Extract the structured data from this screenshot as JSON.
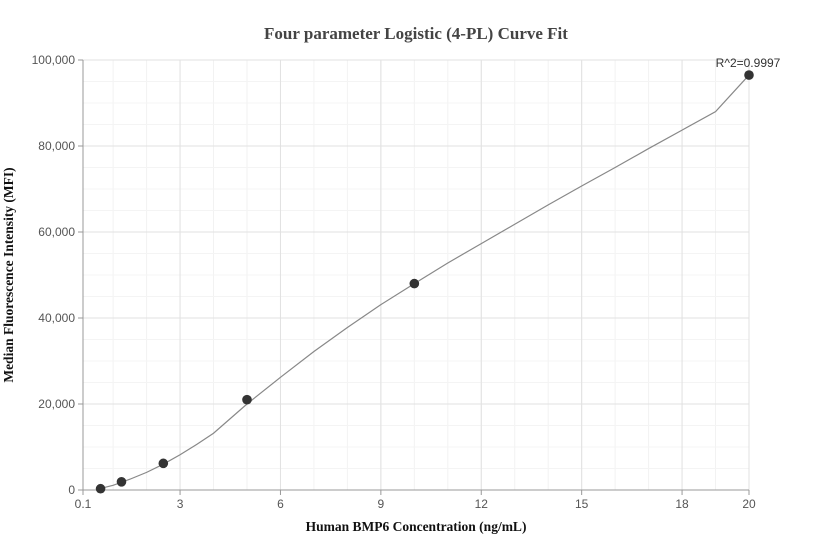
{
  "chart_data": {
    "type": "scatter",
    "title": "Four parameter Logistic (4-PL) Curve Fit",
    "xlabel": "Human BMP6 Concentration (ng/mL)",
    "ylabel": "Median Fluorescence Intensity (MFI)",
    "xlim": [
      0.1,
      20
    ],
    "ylim": [
      0,
      100000
    ],
    "x_ticks": [
      0.1,
      3,
      6,
      9,
      12,
      15,
      18,
      20
    ],
    "x_tick_labels": [
      "0.1",
      "3",
      "6",
      "9",
      "12",
      "15",
      "18",
      "20"
    ],
    "y_ticks": [
      0,
      20000,
      40000,
      60000,
      80000,
      100000
    ],
    "y_tick_labels": [
      "0",
      "20,000",
      "40,000",
      "60,000",
      "80,000",
      "100,000"
    ],
    "grid": true,
    "annotation": "R^2=0.9997",
    "series": [
      {
        "points": [
          {
            "x": 0.625,
            "y": 300
          },
          {
            "x": 1.25,
            "y": 1900
          },
          {
            "x": 2.5,
            "y": 6200
          },
          {
            "x": 5,
            "y": 21000
          },
          {
            "x": 10,
            "y": 48000
          },
          {
            "x": 20,
            "y": 96500
          }
        ],
        "color": "#333333"
      }
    ],
    "fit_curve": {
      "x": [
        0.5,
        1.0,
        1.5,
        2.0,
        2.5,
        3.0,
        3.5,
        4.0,
        5.0,
        6.0,
        7.0,
        8.0,
        9.0,
        10.0,
        11.0,
        12.0,
        13.0,
        14.0,
        15.0,
        16.0,
        17.0,
        18.0,
        19.0,
        20.0
      ],
      "y": [
        120,
        1100,
        2500,
        4100,
        6000,
        8200,
        10600,
        13200,
        20000,
        26200,
        32200,
        37800,
        43100,
        48000,
        52800,
        57300,
        61800,
        66300,
        70700,
        75000,
        79400,
        83700,
        88000,
        96500
      ],
      "color": "#888888"
    }
  }
}
